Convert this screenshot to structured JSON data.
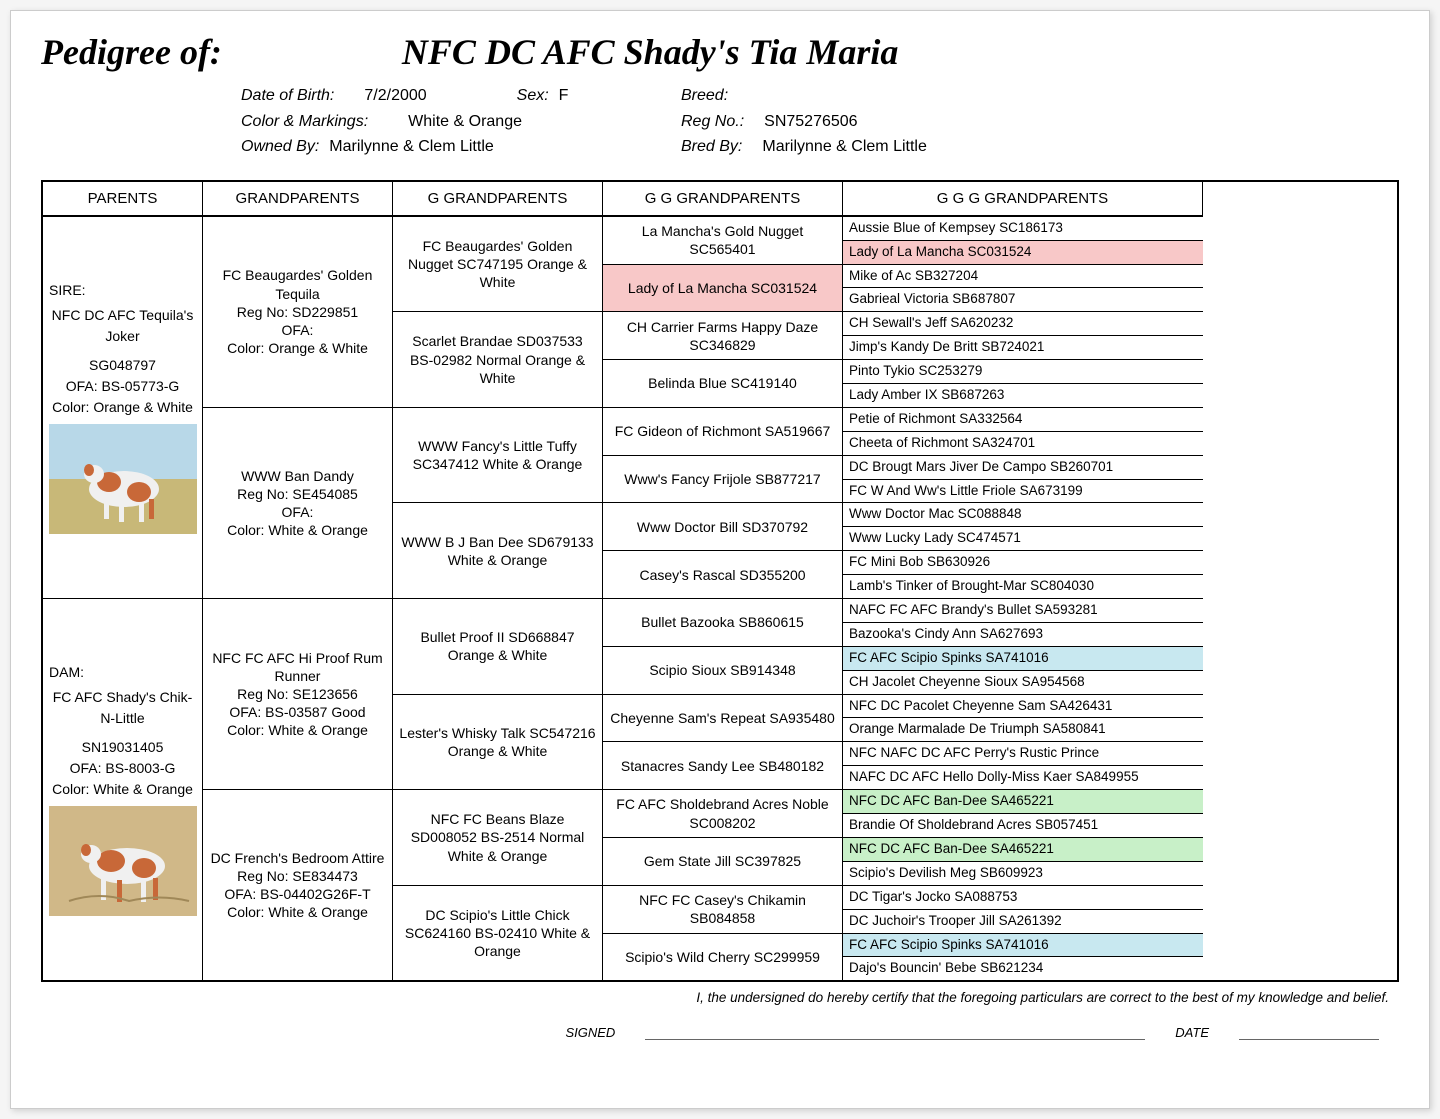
{
  "header": {
    "pedigree_of_label": "Pedigree of:",
    "dog_name": "NFC DC AFC Shady's Tia Maria",
    "dob_label": "Date of Birth:",
    "dob": "7/2/2000",
    "sex_label": "Sex:",
    "sex": "F",
    "breed_label": "Breed:",
    "breed": "",
    "color_label": "Color & Markings:",
    "color": "White & Orange",
    "regno_label": "Reg No.:",
    "regno": "SN75276506",
    "owned_label": "Owned By:",
    "owned": "Marilynne & Clem Little",
    "bred_label": "Bred By:",
    "bred": "Marilynne & Clem Little"
  },
  "columns": {
    "parents": "PARENTS",
    "grandparents": "GRANDPARENTS",
    "ggrandparents": "G GRANDPARENTS",
    "gggrandparents": "G G GRANDPARENTS",
    "ggggrandparents": "G G G GRANDPARENTS"
  },
  "sire": {
    "label": "SIRE:",
    "name": "NFC DC AFC Tequila's Joker",
    "reg": "SG048797",
    "ofa": "OFA: BS-05773-G",
    "color": "Color: Orange & White"
  },
  "dam": {
    "label": "DAM:",
    "name": "FC AFC Shady's Chik-N-Little",
    "reg": "SN19031405",
    "ofa": "OFA: BS-8003-G",
    "color": "Color: White & Orange"
  },
  "gp": [
    {
      "name": "FC Beaugardes' Golden Tequila",
      "reg": "Reg No: SD229851",
      "ofa": "OFA:",
      "color": "Color: Orange & White"
    },
    {
      "name": "WWW Ban Dandy",
      "reg": "Reg No: SE454085",
      "ofa": "OFA:",
      "color": "Color: White & Orange"
    },
    {
      "name": "NFC FC AFC Hi Proof Rum Runner",
      "reg": "Reg No: SE123656",
      "ofa": "OFA: BS-03587 Good",
      "color": "Color: White & Orange"
    },
    {
      "name": "DC French's Bedroom Attire",
      "reg": "Reg No: SE834473",
      "ofa": "OFA: BS-04402G26F-T",
      "color": "Color: White & Orange"
    }
  ],
  "ggp": [
    "FC Beaugardes' Golden Nugget SC747195 Orange & White",
    "Scarlet Brandae SD037533 BS-02982 Normal Orange & White",
    "WWW Fancy's Little Tuffy SC347412 White & Orange",
    "WWW B J Ban Dee SD679133 White & Orange",
    "Bullet Proof II SD668847 Orange & White",
    "Lester's Whisky Talk SC547216 Orange & White",
    "NFC FC Beans Blaze SD008052 BS-2514 Normal White & Orange",
    "DC Scipio's Little Chick SC624160 BS-02410 White & Orange"
  ],
  "gggp": [
    {
      "t": "La Mancha's Gold Nugget SC565401",
      "hl": ""
    },
    {
      "t": "Lady of La Mancha SC031524",
      "hl": "hl-pink"
    },
    {
      "t": "CH Carrier Farms Happy Daze SC346829",
      "hl": ""
    },
    {
      "t": "Belinda Blue SC419140",
      "hl": ""
    },
    {
      "t": "FC Gideon of Richmont SA519667",
      "hl": ""
    },
    {
      "t": "Www's Fancy Frijole SB877217",
      "hl": ""
    },
    {
      "t": "Www Doctor Bill SD370792",
      "hl": ""
    },
    {
      "t": "Casey's Rascal SD355200",
      "hl": ""
    },
    {
      "t": "Bullet Bazooka SB860615",
      "hl": ""
    },
    {
      "t": "Scipio Sioux SB914348",
      "hl": ""
    },
    {
      "t": "Cheyenne Sam's Repeat SA935480",
      "hl": ""
    },
    {
      "t": "Stanacres Sandy Lee SB480182",
      "hl": ""
    },
    {
      "t": "FC AFC Sholdebrand Acres Noble SC008202",
      "hl": ""
    },
    {
      "t": "Gem State Jill SC397825",
      "hl": ""
    },
    {
      "t": "NFC FC Casey's Chikamin SB084858",
      "hl": ""
    },
    {
      "t": "Scipio's Wild Cherry SC299959",
      "hl": ""
    }
  ],
  "ggggp": [
    {
      "t": "Aussie Blue of Kempsey SC186173",
      "hl": ""
    },
    {
      "t": "Lady of La Mancha SC031524",
      "hl": "hl-pink"
    },
    {
      "t": "Mike of Ac SB327204",
      "hl": ""
    },
    {
      "t": "Gabrieal Victoria SB687807",
      "hl": ""
    },
    {
      "t": "CH Sewall's Jeff SA620232",
      "hl": ""
    },
    {
      "t": "Jimp's Kandy De Britt SB724021",
      "hl": ""
    },
    {
      "t": "Pinto Tykio SC253279",
      "hl": ""
    },
    {
      "t": "Lady Amber IX SB687263",
      "hl": ""
    },
    {
      "t": "Petie of Richmont SA332564",
      "hl": ""
    },
    {
      "t": "Cheeta of Richmont SA324701",
      "hl": ""
    },
    {
      "t": "DC Brougt Mars Jiver De Campo SB260701",
      "hl": ""
    },
    {
      "t": "FC W And Ww's Little Friole SA673199",
      "hl": ""
    },
    {
      "t": "Www Doctor Mac SC088848",
      "hl": ""
    },
    {
      "t": "Www Lucky Lady SC474571",
      "hl": ""
    },
    {
      "t": "FC Mini Bob SB630926",
      "hl": ""
    },
    {
      "t": "Lamb's Tinker of Brought-Mar SC804030",
      "hl": ""
    },
    {
      "t": "NAFC FC AFC Brandy's Bullet SA593281",
      "hl": ""
    },
    {
      "t": "Bazooka's Cindy Ann SA627693",
      "hl": ""
    },
    {
      "t": "FC AFC Scipio Spinks SA741016",
      "hl": "hl-blue"
    },
    {
      "t": "CH Jacolet Cheyenne Sioux SA954568",
      "hl": ""
    },
    {
      "t": "NFC DC Pacolet Cheyenne Sam SA426431",
      "hl": ""
    },
    {
      "t": "Orange Marmalade De Triumph SA580841",
      "hl": ""
    },
    {
      "t": "NFC NAFC DC AFC Perry's Rustic Prince",
      "hl": ""
    },
    {
      "t": "NAFC DC AFC Hello Dolly-Miss Kaer SA849955",
      "hl": ""
    },
    {
      "t": "NFC DC AFC Ban-Dee SA465221",
      "hl": "hl-green"
    },
    {
      "t": "Brandie Of Sholdebrand Acres SB057451",
      "hl": ""
    },
    {
      "t": "NFC DC AFC Ban-Dee SA465221",
      "hl": "hl-green"
    },
    {
      "t": "Scipio's Devilish Meg SB609923",
      "hl": ""
    },
    {
      "t": "DC Tigar's Jocko SA088753",
      "hl": ""
    },
    {
      "t": "DC Juchoir's Trooper Jill SA261392",
      "hl": ""
    },
    {
      "t": "FC AFC Scipio Spinks SA741016",
      "hl": "hl-blue"
    },
    {
      "t": "Dajo's Bouncin' Bebe SB621234",
      "hl": ""
    }
  ],
  "footer": {
    "cert": "I, the undersigned do hereby certify that the foregoing particulars are correct to the best of my knowledge and belief.",
    "signed": "SIGNED",
    "date": "DATE"
  },
  "dog_image_colors": {
    "sky": "#b8d8e8",
    "grass": "#c8b878",
    "dog_body": "#f0f0f0",
    "dog_patch": "#c86838"
  }
}
